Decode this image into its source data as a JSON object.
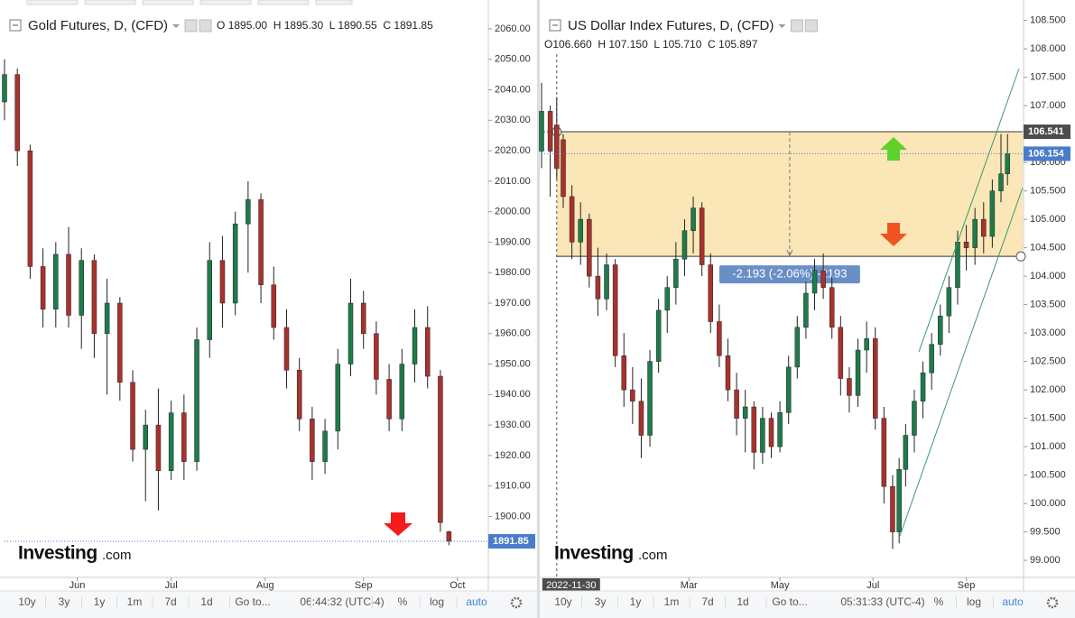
{
  "chart_data": [
    {
      "type": "candlestick",
      "title": "Gold Futures, D, (CFD)",
      "ohlc": "O 1895.00  H 1895.30  L 1890.55  C 1891.85",
      "x": [
        0,
        3,
        6,
        9,
        12,
        15,
        18,
        21,
        24,
        27,
        30,
        33,
        36,
        39,
        42,
        45,
        48,
        51,
        54,
        57,
        60,
        63,
        66,
        69,
        72,
        75,
        78,
        81,
        84,
        87,
        90,
        93,
        96,
        99,
        102,
        104
      ],
      "open": [
        2036,
        2045,
        2020,
        1982,
        1968,
        1986,
        1966,
        1984,
        1960,
        1970,
        1944,
        1922,
        1930,
        1915,
        1934,
        1918,
        1958,
        1984,
        1970,
        1996,
        2004,
        1976,
        1962,
        1948,
        1932,
        1918,
        1928,
        1950,
        1970,
        1960,
        1945,
        1932,
        1950,
        1962,
        1946,
        1895
      ],
      "high": [
        2050,
        2047,
        2022,
        1988,
        1990,
        1995,
        1988,
        1986,
        1978,
        1972,
        1948,
        1935,
        1942,
        1938,
        1940,
        1962,
        1990,
        1992,
        2000,
        2010,
        2006,
        1982,
        1968,
        1952,
        1936,
        1932,
        1955,
        1978,
        1974,
        1964,
        1950,
        1955,
        1968,
        1969,
        1948,
        1895.3
      ],
      "low": [
        2030,
        2015,
        1978,
        1962,
        1962,
        1962,
        1955,
        1952,
        1940,
        1938,
        1918,
        1905,
        1902,
        1912,
        1912,
        1915,
        1952,
        1962,
        1966,
        1980,
        1970,
        1958,
        1942,
        1928,
        1912,
        1914,
        1922,
        1946,
        1955,
        1940,
        1928,
        1928,
        1944,
        1942,
        1895,
        1890.55
      ],
      "close": [
        2045,
        2020,
        1982,
        1968,
        1986,
        1966,
        1984,
        1960,
        1970,
        1944,
        1922,
        1930,
        1915,
        1934,
        1918,
        1958,
        1984,
        1970,
        1996,
        2004,
        1976,
        1962,
        1948,
        1932,
        1918,
        1928,
        1950,
        1970,
        1960,
        1945,
        1932,
        1950,
        1962,
        1946,
        1898,
        1891.85
      ],
      "up_color": "#1e7b4b",
      "down_color": "#a8322d",
      "xlim": [
        0,
        113
      ],
      "xticks": [
        {
          "value": 17,
          "label": "Jun"
        },
        {
          "value": 39,
          "label": "Jul"
        },
        {
          "value": 61,
          "label": "Aug"
        },
        {
          "value": 84,
          "label": "Sep"
        },
        {
          "value": 106,
          "label": "Oct"
        }
      ],
      "ylim": [
        1880,
        2066.5
      ],
      "yticks": [
        {
          "value": 1900,
          "label": "1900.00"
        },
        {
          "value": 1910,
          "label": "1910.00"
        },
        {
          "value": 1920,
          "label": "1920.00"
        },
        {
          "value": 1930,
          "label": "1930.00"
        },
        {
          "value": 1940,
          "label": "1940.00"
        },
        {
          "value": 1950,
          "label": "1950.00"
        },
        {
          "value": 1960,
          "label": "1960.00"
        },
        {
          "value": 1970,
          "label": "1970.00"
        },
        {
          "value": 1980,
          "label": "1980.00"
        },
        {
          "value": 1990,
          "label": "1990.00"
        },
        {
          "value": 2000,
          "label": "2000.00"
        },
        {
          "value": 2010,
          "label": "2010.00"
        },
        {
          "value": 2020,
          "label": "2020.00"
        },
        {
          "value": 2030,
          "label": "2030.00"
        },
        {
          "value": 2040,
          "label": "2040.00"
        },
        {
          "value": 2050,
          "label": "2050.00"
        },
        {
          "value": 2060,
          "label": "2060.00"
        }
      ],
      "grid": false,
      "price_labels": [
        {
          "value": 1891.85,
          "label": "1891.85",
          "color": "#4a7dc9"
        }
      ],
      "toolbar": [
        "10y",
        "3y",
        "1y",
        "1m",
        "7d",
        "1d",
        "Go to...",
        "06:44:32 (UTC-4)",
        "%",
        "log",
        "auto"
      ]
    },
    {
      "type": "candlestick",
      "title": "US Dollar Index Futures, D, (CFD)",
      "ohlc": "O106.660  H 107.150  L 105.710  C 105.897",
      "x": [
        0,
        4,
        7,
        10,
        14,
        18,
        22,
        26,
        30,
        34,
        38,
        42,
        46,
        50,
        54,
        58,
        62,
        66,
        70,
        74,
        78,
        82,
        86,
        90,
        94,
        98,
        102,
        106,
        110,
        114,
        118,
        122,
        126,
        130,
        134,
        138,
        142,
        146,
        150,
        154,
        158,
        162,
        165,
        168,
        172,
        176,
        180,
        184,
        188,
        192,
        196,
        200,
        204,
        208,
        212,
        215
      ],
      "open": [
        106.2,
        106.9,
        106.66,
        106.4,
        105.4,
        104.6,
        105.0,
        104.0,
        103.6,
        104.2,
        102.6,
        102.0,
        101.8,
        101.2,
        102.5,
        103.4,
        103.8,
        104.3,
        104.8,
        105.2,
        104.2,
        103.2,
        102.6,
        102.0,
        101.5,
        101.7,
        100.9,
        101.5,
        101.0,
        101.6,
        102.4,
        103.1,
        103.7,
        104.1,
        103.8,
        103.1,
        102.2,
        101.9,
        102.7,
        102.9,
        101.5,
        100.3,
        99.5,
        100.6,
        101.2,
        101.8,
        102.3,
        102.8,
        103.3,
        103.8,
        104.6,
        104.5,
        105.0,
        104.7,
        105.5,
        105.8
      ],
      "high": [
        107.4,
        107.0,
        107.15,
        106.5,
        105.6,
        105.3,
        105.1,
        104.5,
        104.4,
        104.3,
        103.0,
        102.4,
        102.2,
        102.7,
        103.6,
        104.0,
        104.6,
        105.0,
        105.4,
        105.3,
        104.4,
        103.5,
        102.9,
        102.3,
        102.0,
        101.8,
        101.7,
        101.6,
        101.8,
        102.6,
        103.3,
        103.9,
        104.3,
        104.4,
        104.0,
        103.3,
        102.4,
        102.9,
        103.2,
        103.1,
        101.7,
        100.5,
        100.8,
        101.4,
        102.0,
        102.5,
        103.0,
        103.5,
        104.0,
        104.8,
        104.9,
        105.2,
        105.3,
        105.7,
        106.5,
        106.5
      ],
      "low": [
        105.9,
        105.4,
        105.71,
        105.2,
        104.3,
        104.2,
        103.8,
        103.3,
        103.4,
        102.4,
        101.7,
        101.4,
        100.8,
        101.0,
        102.3,
        103.0,
        103.5,
        104.0,
        104.4,
        104.0,
        103.0,
        102.4,
        101.8,
        101.2,
        100.9,
        100.6,
        100.7,
        100.8,
        100.9,
        101.4,
        102.2,
        102.9,
        103.4,
        103.6,
        102.9,
        101.9,
        101.6,
        101.7,
        102.3,
        101.3,
        100.0,
        99.2,
        99.3,
        100.3,
        100.9,
        101.5,
        102.0,
        102.6,
        103.0,
        103.5,
        104.1,
        104.2,
        104.4,
        104.5,
        105.3,
        105.6
      ],
      "close": [
        106.9,
        106.2,
        105.897,
        105.4,
        104.6,
        105.0,
        104.0,
        103.6,
        104.2,
        102.6,
        102.0,
        101.8,
        101.2,
        102.5,
        103.4,
        103.8,
        104.3,
        104.8,
        105.2,
        104.2,
        103.2,
        102.6,
        102.0,
        101.5,
        101.7,
        100.9,
        101.5,
        101.0,
        101.6,
        102.4,
        103.1,
        103.7,
        104.1,
        103.8,
        103.1,
        102.2,
        101.9,
        102.7,
        102.9,
        101.5,
        100.3,
        99.5,
        100.6,
        101.2,
        101.8,
        102.3,
        102.8,
        103.3,
        103.8,
        104.6,
        104.5,
        105.0,
        104.7,
        105.5,
        105.8,
        106.154
      ],
      "up_color": "#1e7b4b",
      "down_color": "#a8322d",
      "xlim": [
        0,
        222
      ],
      "xticks": [
        {
          "value": 68,
          "label": "Mar"
        },
        {
          "value": 110,
          "label": "May"
        },
        {
          "value": 153,
          "label": "Jul"
        },
        {
          "value": 196,
          "label": "Sep"
        }
      ],
      "crosshair": {
        "x": 7,
        "label": "2022-11-30"
      },
      "ylim": [
        98.7,
        108.7
      ],
      "yticks": [
        {
          "value": 99.0,
          "label": "99.000"
        },
        {
          "value": 99.5,
          "label": "99.500"
        },
        {
          "value": 100.0,
          "label": "100.000"
        },
        {
          "value": 100.5,
          "label": "100.500"
        },
        {
          "value": 101.0,
          "label": "101.000"
        },
        {
          "value": 101.5,
          "label": "101.500"
        },
        {
          "value": 102.0,
          "label": "102.000"
        },
        {
          "value": 102.5,
          "label": "102.500"
        },
        {
          "value": 103.0,
          "label": "103.000"
        },
        {
          "value": 103.5,
          "label": "103.500"
        },
        {
          "value": 104.0,
          "label": "104.000"
        },
        {
          "value": 104.5,
          "label": "104.500"
        },
        {
          "value": 105.0,
          "label": "105.000"
        },
        {
          "value": 105.5,
          "label": "105.500"
        },
        {
          "value": 106.0,
          "label": "106.000"
        },
        {
          "value": 106.5,
          "label": "106.500"
        },
        {
          "value": 107.0,
          "label": "107.000"
        },
        {
          "value": 107.5,
          "label": "107.500"
        },
        {
          "value": 108.0,
          "label": "108.000"
        },
        {
          "value": 108.5,
          "label": "108.500"
        }
      ],
      "grid": false,
      "range": {
        "x_from": 7,
        "from": 104.348,
        "to": 106.541,
        "label": "-2.193 (-2.06%) -2193"
      },
      "price_labels": [
        {
          "value": 106.541,
          "label": "106.541",
          "color": "#4d4d4d"
        },
        {
          "value": 106.154,
          "label": "106.154",
          "color": "#4a7dc9"
        }
      ],
      "toolbar": [
        "10y",
        "3y",
        "1y",
        "1m",
        "7d",
        "1d",
        "Go to...",
        "05:31:33 (UTC-4)",
        "%",
        "log",
        "auto"
      ]
    }
  ],
  "logo": [
    "Investing",
    ".com"
  ]
}
